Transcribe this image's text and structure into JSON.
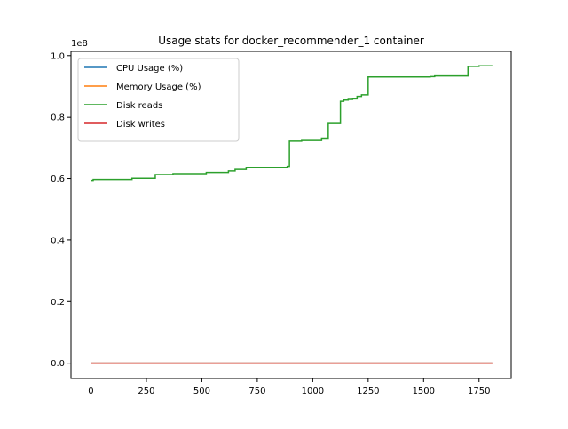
{
  "chart_data": {
    "type": "line",
    "title": "Usage stats for docker_recommender_1 container",
    "xlabel": "",
    "ylabel": "",
    "y_offset_label": "1e8",
    "xlim": [
      -90,
      1895
    ],
    "ylim": [
      -0.05,
      1.0138
    ],
    "x_ticks": [
      0,
      250,
      500,
      750,
      1000,
      1250,
      1500,
      1750
    ],
    "x_tick_labels": [
      "0",
      "250",
      "500",
      "750",
      "1000",
      "1250",
      "1500",
      "1750"
    ],
    "y_ticks": [
      0.0,
      0.2,
      0.4,
      0.6,
      0.8,
      1.0
    ],
    "y_tick_labels": [
      "0.0",
      "0.2",
      "0.4",
      "0.6",
      "0.8",
      "1.0"
    ],
    "grid": false,
    "legend_position": "upper-left",
    "series": [
      {
        "name": "CPU Usage (%)",
        "color": "#1f77b4",
        "x": [
          0,
          1810
        ],
        "y": [
          0.0,
          0.0
        ]
      },
      {
        "name": "Memory Usage (%)",
        "color": "#ff7f0e",
        "x": [
          0,
          1810
        ],
        "y": [
          0.0,
          0.0
        ]
      },
      {
        "name": "Disk reads",
        "color": "#2ca02c",
        "x": [
          0,
          10,
          185,
          290,
          370,
          520,
          620,
          650,
          700,
          885,
          895,
          950,
          1040,
          1070,
          1125,
          1140,
          1160,
          1180,
          1200,
          1220,
          1250,
          1530,
          1550,
          1700,
          1750,
          1810
        ],
        "y": [
          0.594,
          0.597,
          0.601,
          0.613,
          0.616,
          0.62,
          0.625,
          0.63,
          0.637,
          0.64,
          0.723,
          0.725,
          0.73,
          0.78,
          0.852,
          0.856,
          0.858,
          0.86,
          0.868,
          0.873,
          0.931,
          0.932,
          0.934,
          0.965,
          0.967,
          0.968
        ]
      },
      {
        "name": "Disk writes",
        "color": "#d62728",
        "x": [
          0,
          1810
        ],
        "y": [
          0.0,
          0.0
        ]
      }
    ]
  }
}
